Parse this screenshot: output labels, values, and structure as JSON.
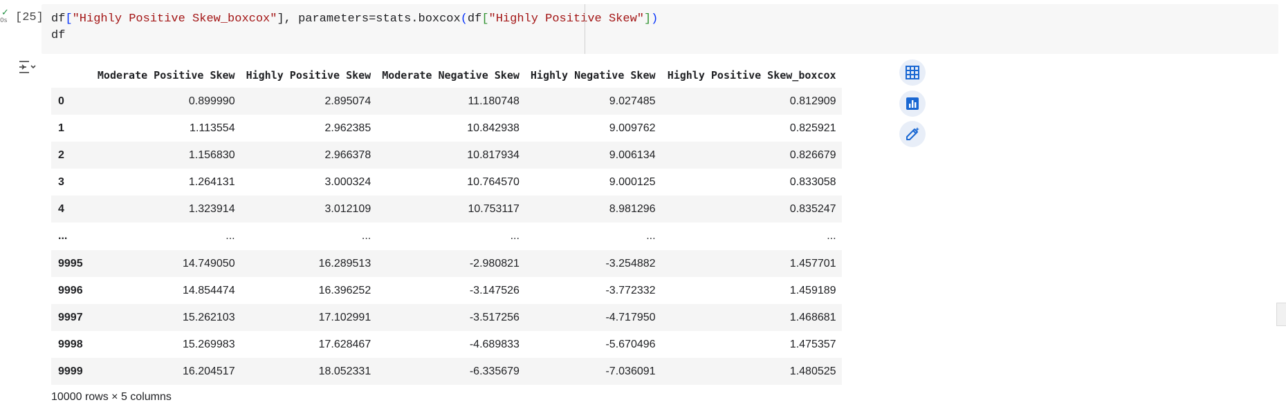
{
  "cell": {
    "execution_count": "[25]",
    "status_icon": "check-icon",
    "status_time": "0s",
    "code": {
      "line1": {
        "t1": "df",
        "t2": "[",
        "t3": "\"Highly Positive Skew_boxcox\"",
        "t4": "], parameters=stats.boxcox",
        "t5": "(",
        "t6": "df",
        "t7": "[",
        "t8": "\"Highly Positive Skew\"",
        "t9": "]",
        "t10": ")"
      },
      "line2": "df"
    }
  },
  "output": {
    "toggle_icon": "output-actions-icon",
    "table": {
      "columns": [
        "",
        "Moderate Positive Skew",
        "Highly Positive Skew",
        "Moderate Negative Skew",
        "Highly Negative Skew",
        "Highly Positive Skew_boxcox"
      ],
      "rows": [
        {
          "index": "0",
          "values": [
            "0.899990",
            "2.895074",
            "11.180748",
            "9.027485",
            "0.812909"
          ]
        },
        {
          "index": "1",
          "values": [
            "1.113554",
            "2.962385",
            "10.842938",
            "9.009762",
            "0.825921"
          ]
        },
        {
          "index": "2",
          "values": [
            "1.156830",
            "2.966378",
            "10.817934",
            "9.006134",
            "0.826679"
          ]
        },
        {
          "index": "3",
          "values": [
            "1.264131",
            "3.000324",
            "10.764570",
            "9.000125",
            "0.833058"
          ]
        },
        {
          "index": "4",
          "values": [
            "1.323914",
            "3.012109",
            "10.753117",
            "8.981296",
            "0.835247"
          ]
        },
        {
          "index": "...",
          "values": [
            "...",
            "...",
            "...",
            "...",
            "..."
          ]
        },
        {
          "index": "9995",
          "values": [
            "14.749050",
            "16.289513",
            "-2.980821",
            "-3.254882",
            "1.457701"
          ]
        },
        {
          "index": "9996",
          "values": [
            "14.854474",
            "16.396252",
            "-3.147526",
            "-3.772332",
            "1.459189"
          ]
        },
        {
          "index": "9997",
          "values": [
            "15.262103",
            "17.102991",
            "-3.517256",
            "-4.717950",
            "1.468681"
          ]
        },
        {
          "index": "9998",
          "values": [
            "15.269983",
            "17.628467",
            "-4.689833",
            "-5.670496",
            "1.475357"
          ]
        },
        {
          "index": "9999",
          "values": [
            "16.204517",
            "18.052331",
            "-6.335679",
            "-7.036091",
            "1.480525"
          ]
        }
      ]
    },
    "shape_summary": "10000 rows × 5 columns",
    "side_actions": [
      {
        "icon": "table-icon"
      },
      {
        "icon": "bar-chart-icon"
      },
      {
        "icon": "magic-pen-icon"
      }
    ],
    "colors": {
      "accent": "#1967d2",
      "button_bg": "#e8eef8",
      "code_bg": "#f7f7f7",
      "string": "#a31515"
    }
  }
}
